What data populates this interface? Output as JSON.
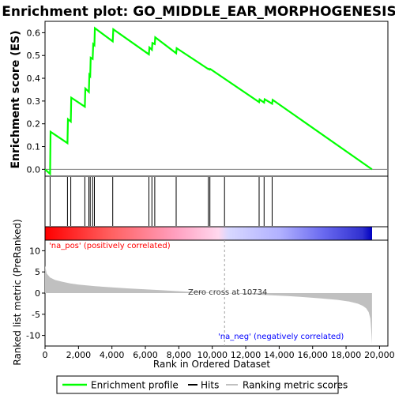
{
  "title": "Enrichment plot: GO_MIDDLE_EAR_MORPHOGENESIS",
  "colors": {
    "es_line": "#00ff00",
    "hit_line": "#000000",
    "metric_fill": "#c0c0c0",
    "pos_label": "#ff0000",
    "neg_label": "#0000ff"
  },
  "chart_data": {
    "type": "line",
    "top_panel": {
      "ylabel": "Enrichment score (ES)",
      "ylim": [
        -0.03,
        0.65
      ],
      "yticks": [
        "0.0",
        "0.1",
        "0.2",
        "0.3",
        "0.4",
        "0.5",
        "0.6"
      ],
      "series": [
        {
          "name": "Enrichment profile",
          "x": [
            0,
            300,
            330,
            1340,
            1370,
            1540,
            1570,
            2380,
            2410,
            2620,
            2650,
            2700,
            2730,
            2850,
            2880,
            2950,
            2980,
            4050,
            4080,
            6210,
            6240,
            6390,
            6420,
            6560,
            6590,
            7840,
            7870,
            9770,
            9800,
            9860,
            9890,
            12800,
            12830,
            13100,
            13130,
            13580,
            13610,
            19550
          ],
          "y": [
            0.0,
            -0.02,
            0.165,
            0.115,
            0.22,
            0.21,
            0.315,
            0.275,
            0.355,
            0.34,
            0.415,
            0.41,
            0.49,
            0.485,
            0.55,
            0.545,
            0.62,
            0.562,
            0.615,
            0.505,
            0.535,
            0.525,
            0.555,
            0.55,
            0.58,
            0.51,
            0.532,
            0.44,
            0.442,
            0.438,
            0.44,
            0.295,
            0.307,
            0.293,
            0.308,
            0.288,
            0.305,
            0.0
          ]
        }
      ]
    },
    "hits": [
      300,
      1340,
      1540,
      2380,
      2620,
      2700,
      2850,
      2950,
      4050,
      6210,
      6390,
      6560,
      7840,
      9770,
      9860,
      10734,
      12800,
      13100,
      13580
    ],
    "bottom_panel": {
      "ylabel": "Ranked list metric (PreRanked)",
      "ylim": [
        -12.5,
        12.5
      ],
      "yticks": [
        "10",
        "5",
        "0",
        "-5",
        "-10"
      ],
      "profile_x": [
        0,
        100,
        300,
        600,
        1000,
        1500,
        2000,
        3000,
        4000,
        5000,
        6000,
        7000,
        8000,
        9000,
        10000,
        10734,
        11500,
        12500,
        13500,
        14500,
        15500,
        16500,
        17500,
        18200,
        18700,
        19000,
        19200,
        19350,
        19450,
        19500,
        19550
      ],
      "profile_y": [
        6.5,
        4.6,
        3.7,
        3.1,
        2.7,
        2.3,
        2.0,
        1.65,
        1.35,
        1.1,
        0.9,
        0.68,
        0.45,
        0.25,
        0.1,
        0.0,
        -0.12,
        -0.3,
        -0.5,
        -0.7,
        -0.95,
        -1.25,
        -1.6,
        -2.0,
        -2.5,
        -3.0,
        -3.6,
        -4.5,
        -6.0,
        -8.5,
        -12.0
      ]
    },
    "xlabel": "Rank in Ordered Dataset",
    "xlim": [
      0,
      20500
    ],
    "xticks": [
      "0",
      "2,000",
      "4,000",
      "6,000",
      "8,000",
      "10,000",
      "12,000",
      "14,000",
      "16,000",
      "18,000",
      "20,000"
    ],
    "annotations": {
      "pos": "'na_pos' (positively correlated)",
      "neg": "'na_neg' (negatively correlated)",
      "zero_cross": "Zero cross at 10734"
    },
    "legend": {
      "position": "bottom",
      "items": [
        "Enrichment profile",
        "Hits",
        "Ranking metric scores"
      ]
    }
  }
}
